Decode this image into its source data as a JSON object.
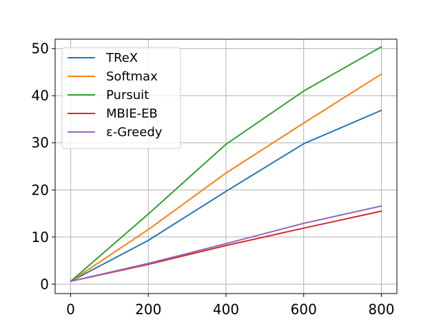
{
  "chart_data": {
    "type": "line",
    "title": "",
    "xlabel": "",
    "ylabel": "",
    "xlim": [
      -40,
      840
    ],
    "ylim": [
      -2,
      52
    ],
    "x": [
      0,
      200,
      400,
      600,
      800
    ],
    "x_ticks": [
      0,
      200,
      400,
      600,
      800
    ],
    "y_ticks": [
      0,
      10,
      20,
      30,
      40,
      50
    ],
    "grid": true,
    "legend_position": "top-left",
    "series": [
      {
        "name": "TReX",
        "color": "#1f77b4",
        "values": [
          0.6,
          9.3,
          19.7,
          29.8,
          36.9
        ]
      },
      {
        "name": "Softmax",
        "color": "#ff7f0e",
        "values": [
          0.6,
          11.6,
          23.6,
          34.2,
          44.6
        ]
      },
      {
        "name": "Pursuit",
        "color": "#2ca02c",
        "values": [
          0.6,
          14.9,
          29.7,
          41.0,
          50.4
        ]
      },
      {
        "name": "MBIE-EB",
        "color": "#d62728",
        "values": [
          0.6,
          4.2,
          8.2,
          11.9,
          15.5
        ]
      },
      {
        "name": "ε-Greedy",
        "color": "#9467bd",
        "values": [
          0.6,
          4.4,
          8.6,
          12.9,
          16.6
        ]
      }
    ]
  }
}
